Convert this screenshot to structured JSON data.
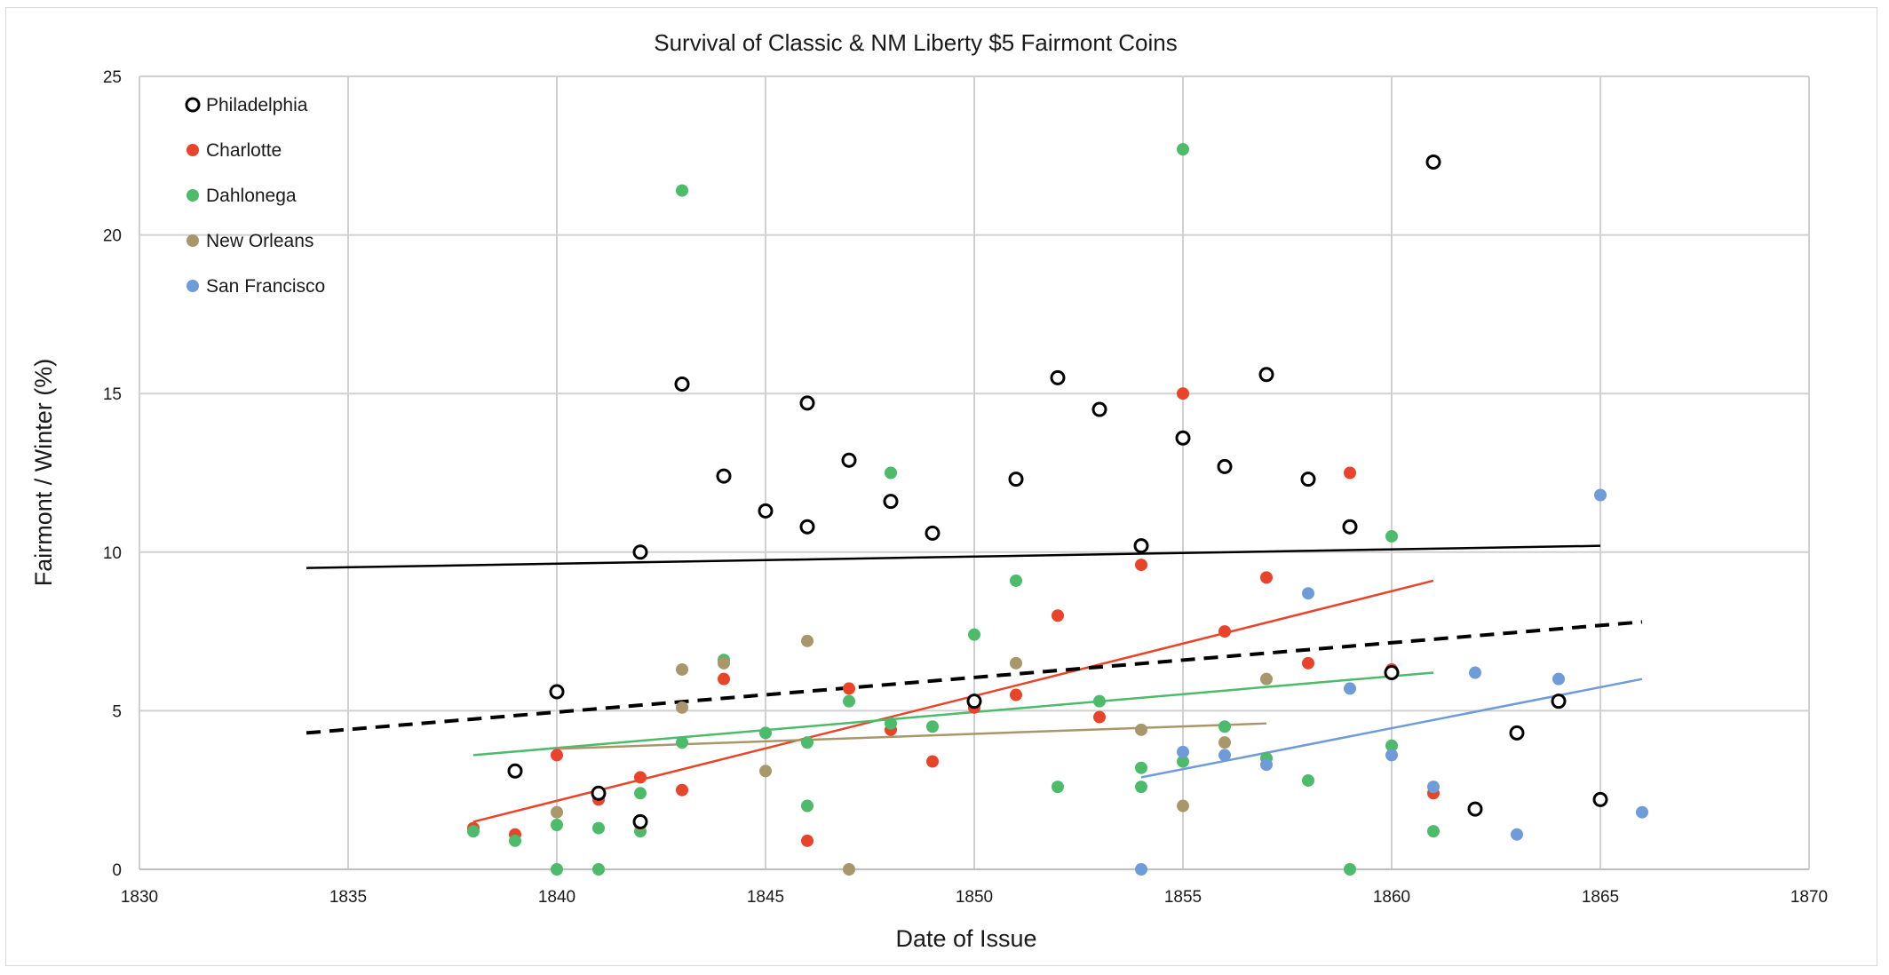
{
  "chart_data": {
    "type": "scatter",
    "title": "Survival of Classic & NM Liberty $5 Fairmont Coins",
    "xlabel": "Date of Issue",
    "ylabel": "Fairmont / Winter (%)",
    "xlim": [
      1830,
      1870
    ],
    "ylim": [
      0,
      25
    ],
    "xticks": [
      1830,
      1835,
      1840,
      1845,
      1850,
      1855,
      1860,
      1865,
      1870
    ],
    "yticks": [
      0,
      5,
      10,
      15,
      20,
      25
    ],
    "grid": true,
    "legend_position": "top-left",
    "series": [
      {
        "name": "Philadelphia",
        "color": "#000000",
        "marker": "open-circle",
        "points": [
          [
            1839,
            3.1
          ],
          [
            1840,
            5.6
          ],
          [
            1841,
            2.4
          ],
          [
            1842,
            1.5
          ],
          [
            1842,
            10.0
          ],
          [
            1843,
            15.3
          ],
          [
            1844,
            12.4
          ],
          [
            1845,
            11.3
          ],
          [
            1846,
            14.7
          ],
          [
            1846,
            10.8
          ],
          [
            1847,
            12.9
          ],
          [
            1848,
            11.6
          ],
          [
            1849,
            10.6
          ],
          [
            1850,
            5.3
          ],
          [
            1851,
            12.3
          ],
          [
            1852,
            15.5
          ],
          [
            1853,
            14.5
          ],
          [
            1854,
            10.2
          ],
          [
            1855,
            13.6
          ],
          [
            1856,
            12.7
          ],
          [
            1857,
            15.6
          ],
          [
            1858,
            12.3
          ],
          [
            1859,
            10.8
          ],
          [
            1860,
            6.2
          ],
          [
            1861,
            22.3
          ],
          [
            1862,
            1.9
          ],
          [
            1863,
            4.3
          ],
          [
            1864,
            5.3
          ],
          [
            1865,
            2.2
          ]
        ],
        "trendline": {
          "x": [
            1834,
            1865
          ],
          "y": [
            9.5,
            10.2
          ],
          "style": "solid"
        }
      },
      {
        "name": "Charlotte",
        "color": "#e8442a",
        "marker": "filled-circle",
        "points": [
          [
            1838,
            1.3
          ],
          [
            1839,
            1.1
          ],
          [
            1840,
            3.6
          ],
          [
            1841,
            2.2
          ],
          [
            1842,
            2.9
          ],
          [
            1842,
            1.5
          ],
          [
            1843,
            2.5
          ],
          [
            1844,
            6.0
          ],
          [
            1846,
            0.9
          ],
          [
            1847,
            5.7
          ],
          [
            1848,
            4.4
          ],
          [
            1849,
            3.4
          ],
          [
            1850,
            5.1
          ],
          [
            1851,
            5.5
          ],
          [
            1852,
            8.0
          ],
          [
            1853,
            4.8
          ],
          [
            1854,
            9.6
          ],
          [
            1855,
            15.0
          ],
          [
            1856,
            7.5
          ],
          [
            1857,
            9.2
          ],
          [
            1858,
            6.5
          ],
          [
            1859,
            12.5
          ],
          [
            1860,
            6.3
          ],
          [
            1861,
            2.4
          ]
        ],
        "trendline": {
          "x": [
            1838,
            1861
          ],
          "y": [
            1.5,
            9.1
          ],
          "style": "solid"
        }
      },
      {
        "name": "Dahlonega",
        "color": "#4cbb6a",
        "marker": "filled-circle",
        "points": [
          [
            1838,
            1.2
          ],
          [
            1839,
            0.9
          ],
          [
            1840,
            1.4
          ],
          [
            1840,
            0.0
          ],
          [
            1841,
            1.3
          ],
          [
            1841,
            0.0
          ],
          [
            1842,
            2.4
          ],
          [
            1842,
            1.2
          ],
          [
            1843,
            21.4
          ],
          [
            1843,
            4.0
          ],
          [
            1844,
            6.6
          ],
          [
            1845,
            4.3
          ],
          [
            1846,
            4.0
          ],
          [
            1846,
            2.0
          ],
          [
            1847,
            5.3
          ],
          [
            1848,
            12.5
          ],
          [
            1848,
            4.6
          ],
          [
            1849,
            4.5
          ],
          [
            1850,
            7.4
          ],
          [
            1851,
            9.1
          ],
          [
            1852,
            2.6
          ],
          [
            1853,
            5.3
          ],
          [
            1854,
            3.2
          ],
          [
            1854,
            2.6
          ],
          [
            1855,
            22.7
          ],
          [
            1855,
            3.4
          ],
          [
            1856,
            4.5
          ],
          [
            1857,
            3.5
          ],
          [
            1858,
            2.8
          ],
          [
            1859,
            0.0
          ],
          [
            1860,
            10.5
          ],
          [
            1860,
            3.9
          ],
          [
            1861,
            1.2
          ]
        ],
        "trendline": {
          "x": [
            1838,
            1861
          ],
          "y": [
            3.6,
            6.2
          ],
          "style": "solid"
        }
      },
      {
        "name": "New Orleans",
        "color": "#a9976c",
        "marker": "filled-circle",
        "points": [
          [
            1840,
            1.8
          ],
          [
            1842,
            1.4
          ],
          [
            1843,
            6.3
          ],
          [
            1843,
            5.1
          ],
          [
            1844,
            6.5
          ],
          [
            1845,
            3.1
          ],
          [
            1846,
            7.2
          ],
          [
            1847,
            0.0
          ],
          [
            1851,
            6.5
          ],
          [
            1854,
            4.4
          ],
          [
            1855,
            2.0
          ],
          [
            1856,
            4.0
          ],
          [
            1857,
            6.0
          ],
          [
            1860,
            6.2
          ]
        ],
        "trendline": {
          "x": [
            1840,
            1857
          ],
          "y": [
            3.8,
            4.6
          ],
          "style": "solid"
        }
      },
      {
        "name": "San Francisco",
        "color": "#6f9bd8",
        "marker": "filled-circle",
        "points": [
          [
            1854,
            0.0
          ],
          [
            1855,
            3.7
          ],
          [
            1856,
            3.6
          ],
          [
            1857,
            3.3
          ],
          [
            1858,
            8.7
          ],
          [
            1859,
            5.7
          ],
          [
            1860,
            3.6
          ],
          [
            1861,
            2.6
          ],
          [
            1862,
            6.2
          ],
          [
            1863,
            1.1
          ],
          [
            1864,
            6.0
          ],
          [
            1865,
            11.8
          ],
          [
            1866,
            1.8
          ]
        ],
        "trendline": {
          "x": [
            1854,
            1866
          ],
          "y": [
            2.9,
            6.0
          ],
          "style": "solid"
        }
      }
    ],
    "overall_trendline": {
      "x": [
        1834,
        1866
      ],
      "y": [
        4.3,
        7.8
      ],
      "style": "dashed",
      "color": "#000000"
    }
  }
}
